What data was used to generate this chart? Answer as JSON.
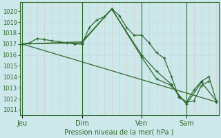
{
  "background_color": "#cde8ea",
  "grid_color": "#b8d8da",
  "line_color": "#2d6a2d",
  "xlabel": "Pression niveau de la mer( hPa )",
  "ylim": [
    1010.5,
    1020.8
  ],
  "yticks": [
    1011,
    1012,
    1013,
    1014,
    1015,
    1016,
    1017,
    1018,
    1019,
    1020
  ],
  "day_labels": [
    "Jeu",
    "Dim",
    "Ven",
    "Sam"
  ],
  "day_positions": [
    0,
    8,
    16,
    22
  ],
  "xlim": [
    -0.3,
    26.3
  ],
  "series1_x": [
    0,
    1,
    2,
    3,
    4,
    5,
    6,
    7,
    8,
    9,
    10,
    11,
    12,
    13,
    14,
    15,
    16,
    17,
    18,
    19,
    20,
    21,
    22,
    23,
    24,
    25
  ],
  "series1_y": [
    1017.0,
    1017.1,
    1017.5,
    1017.4,
    1017.3,
    1017.2,
    1017.1,
    1017.0,
    1017.0,
    1018.5,
    1019.2,
    1019.5,
    1020.2,
    1019.6,
    1018.5,
    1017.8,
    1017.8,
    1017.1,
    1016.2,
    1015.7,
    1014.0,
    1012.1,
    1011.7,
    1011.8,
    1013.2,
    1013.6
  ],
  "series2_x": [
    0,
    8,
    12,
    16,
    18,
    20,
    21,
    22,
    23,
    24,
    25,
    26
  ],
  "series2_y": [
    1017.0,
    1017.2,
    1020.2,
    1016.0,
    1014.5,
    1013.3,
    1012.2,
    1011.7,
    1012.8,
    1013.6,
    1014.0,
    1011.8
  ],
  "series3_x": [
    0,
    26
  ],
  "series3_y": [
    1017.0,
    1011.7
  ],
  "series4_x": [
    0,
    8,
    12,
    16,
    18,
    20,
    22,
    24,
    26
  ],
  "series4_y": [
    1017.0,
    1017.1,
    1020.2,
    1015.8,
    1013.8,
    1013.2,
    1011.5,
    1013.5,
    1011.8
  ],
  "figsize": [
    3.2,
    2.0
  ],
  "dpi": 100
}
